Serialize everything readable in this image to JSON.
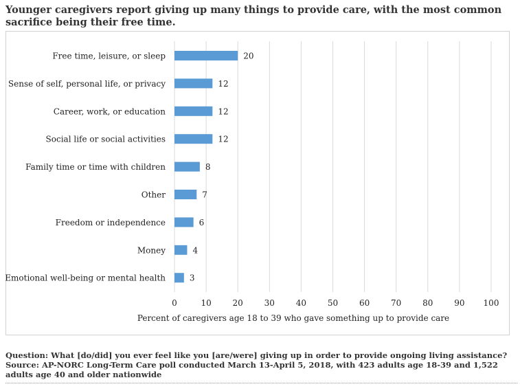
{
  "title": "Younger caregivers report giving up many things to provide care, with the most common sacrifice being their free time.",
  "footnote": {
    "question": "Question: What [do/did] you ever feel like you [are/were] giving up in order to provide ongoing living assistance?",
    "source": "Source: AP-NORC Long-Term Care poll conducted March 13-April 5, 2018, with 423 adults age 18-39 and 1,522 adults age 40 and older nationwide"
  },
  "colors": {
    "bar": "#5b9bd5",
    "grid": "#d9d9d9",
    "text": "#222222"
  },
  "chart_data": {
    "type": "bar",
    "orientation": "horizontal",
    "categories": [
      "Free time, leisure, or sleep",
      "Sense of self, personal life, or privacy",
      "Career, work, or education",
      "Social life or social activities",
      "Family time or time with children",
      "Other",
      "Freedom or independence",
      "Money",
      "Emotional well-being or mental health"
    ],
    "values": [
      20,
      12,
      12,
      12,
      8,
      7,
      6,
      4,
      3
    ],
    "xlabel": "Percent of caregivers age 18 to 39 who gave something up to provide care",
    "xlim": [
      0,
      100
    ],
    "xticks": [
      0,
      10,
      20,
      30,
      40,
      50,
      60,
      70,
      80,
      90,
      100
    ],
    "grid": true,
    "legend": "none"
  }
}
